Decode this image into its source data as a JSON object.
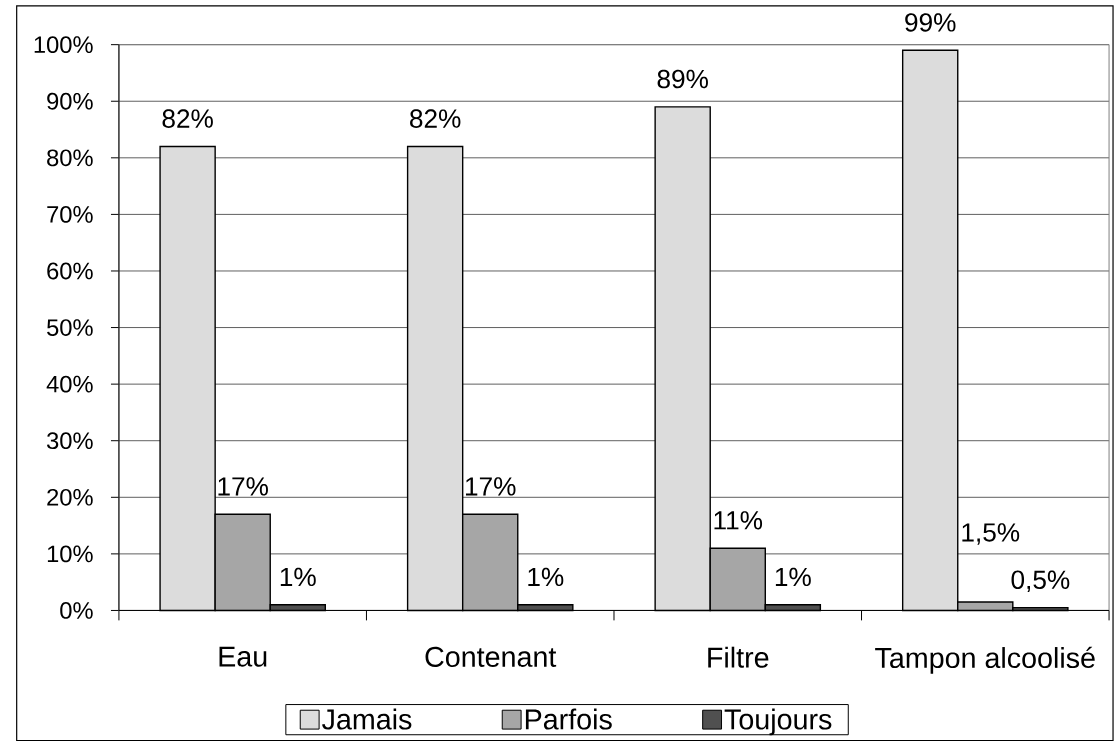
{
  "chart_data": {
    "type": "bar",
    "categories": [
      "Eau",
      "Contenant",
      "Filtre",
      "Tampon alcoolisé"
    ],
    "series": [
      {
        "name": "Jamais",
        "color": "#dcdcdc",
        "values": [
          82,
          82,
          89,
          99
        ],
        "value_labels": [
          "82%",
          "82%",
          "89%",
          "99%"
        ]
      },
      {
        "name": "Parfois",
        "color": "#a6a6a6",
        "values": [
          17,
          17,
          11,
          1.5
        ],
        "value_labels": [
          "17%",
          "17%",
          "11%",
          "1,5%"
        ]
      },
      {
        "name": "Toujours",
        "color": "#505050",
        "values": [
          1,
          1,
          1,
          0.5
        ],
        "value_labels": [
          "1%",
          "1%",
          "1%",
          "0,5%"
        ]
      }
    ],
    "ylim": [
      0,
      100
    ],
    "yticks": [
      {
        "value": 0,
        "label": "0%"
      },
      {
        "value": 10,
        "label": "10%"
      },
      {
        "value": 20,
        "label": "20%"
      },
      {
        "value": 30,
        "label": "30%"
      },
      {
        "value": 40,
        "label": "40%"
      },
      {
        "value": 50,
        "label": "50%"
      },
      {
        "value": 60,
        "label": "60%"
      },
      {
        "value": 70,
        "label": "70%"
      },
      {
        "value": 80,
        "label": "80%"
      },
      {
        "value": 90,
        "label": "90%"
      },
      {
        "value": 100,
        "label": "100%"
      }
    ],
    "grid": "y",
    "legend": "bottom"
  }
}
